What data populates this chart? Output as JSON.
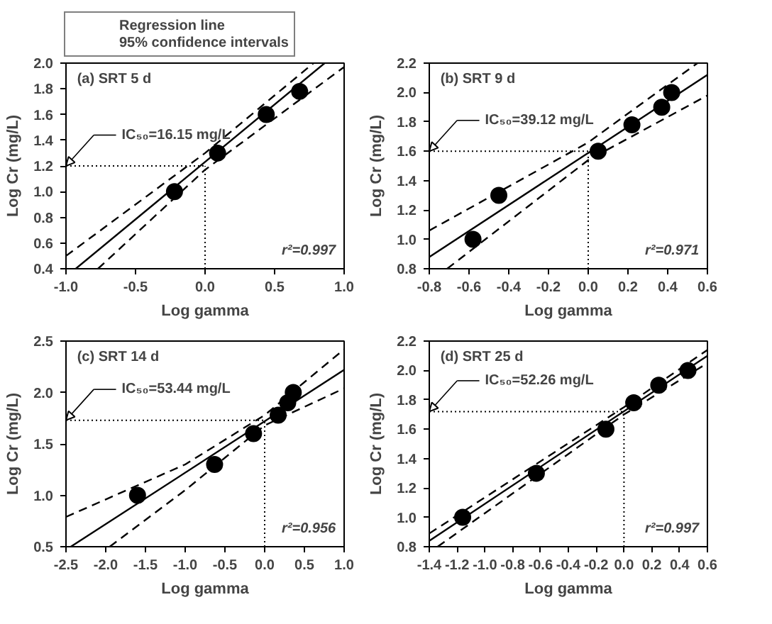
{
  "chart_data": [
    {
      "type": "scatter",
      "title": "(a) SRT 5 d",
      "xlabel": "Log gamma",
      "ylabel": "Log Cr (mg/L)",
      "xlim": [
        -1.0,
        1.0
      ],
      "ylim": [
        0.4,
        2.0
      ],
      "xticks": [
        {
          "value": -1.0,
          "label": "-1.0"
        },
        {
          "value": -0.5,
          "label": "-0.5"
        },
        {
          "value": 0,
          "label": "0.0"
        },
        {
          "value": 0.5,
          "label": "0.5"
        },
        {
          "value": 1.0,
          "label": "1.0"
        }
      ],
      "yticks": [
        {
          "value": 0.4,
          "label": "0.4"
        },
        {
          "value": 0.6,
          "label": "0.6"
        },
        {
          "value": 0.8,
          "label": "0.8"
        },
        {
          "value": 1.0,
          "label": "1.0"
        },
        {
          "value": 1.2,
          "label": "1.2"
        },
        {
          "value": 1.4,
          "label": "1.4"
        },
        {
          "value": 1.6,
          "label": "1.6"
        },
        {
          "value": 1.8,
          "label": "1.8"
        },
        {
          "value": 2.0,
          "label": "2.0"
        }
      ],
      "legend": "top left",
      "grid": false,
      "annotations": [
        "IC₅₀=16.15 mg/L",
        "r²=0.997"
      ],
      "ref_lines": [
        {
          "axis": "y",
          "value": 1.2,
          "line_style": "dotted"
        },
        {
          "axis": "x",
          "value": 0,
          "line_style": "dotted"
        }
      ],
      "series": [
        {
          "marker": "circle",
          "color": "#000000",
          "x": [
            -0.22,
            0.09,
            0.44,
            0.68
          ],
          "values": [
            1.0,
            1.3,
            1.6,
            1.78
          ]
        },
        {
          "type": "line",
          "name": "Regression line",
          "line_style": "solid",
          "color": "#000000",
          "x": [
            -0.93,
            0.86
          ],
          "values": [
            0.4,
            2.0
          ]
        },
        {
          "type": "line",
          "name": "95% confidence intervals",
          "line_style": "dashed",
          "color": "#000000",
          "x": [
            -1.0,
            0.0,
            0.78
          ],
          "values": [
            0.5,
            1.3,
            2.0
          ]
        },
        {
          "type": "line",
          "line_style": "dashed",
          "color": "#000000",
          "x": [
            -0.77,
            0.0,
            1.0
          ],
          "values": [
            0.4,
            1.17,
            1.97
          ]
        }
      ]
    },
    {
      "type": "scatter",
      "title": "(b) SRT 9 d",
      "xlabel": "Log gamma",
      "ylabel": "Log Cr (mg/L)",
      "xlim": [
        -0.8,
        0.6
      ],
      "ylim": [
        0.8,
        2.2
      ],
      "xticks": [
        {
          "value": -0.8,
          "label": "-0.8"
        },
        {
          "value": -0.6,
          "label": "-0.6"
        },
        {
          "value": -0.4,
          "label": "-0.4"
        },
        {
          "value": -0.2,
          "label": "-0.2"
        },
        {
          "value": 0,
          "label": "0.0"
        },
        {
          "value": 0.2,
          "label": "0.2"
        },
        {
          "value": 0.4,
          "label": "0.4"
        },
        {
          "value": 0.6,
          "label": "0.6"
        }
      ],
      "yticks": [
        {
          "value": 0.8,
          "label": "0.8"
        },
        {
          "value": 1.0,
          "label": "1.0"
        },
        {
          "value": 1.2,
          "label": "1.2"
        },
        {
          "value": 1.4,
          "label": "1.4"
        },
        {
          "value": 1.6,
          "label": "1.6"
        },
        {
          "value": 1.8,
          "label": "1.8"
        },
        {
          "value": 2.0,
          "label": "2.0"
        },
        {
          "value": 2.2,
          "label": "2.2"
        }
      ],
      "grid": false,
      "annotations": [
        "IC₅₀=39.12 mg/L",
        "r²=0.971"
      ],
      "ref_lines": [
        {
          "axis": "y",
          "value": 1.6,
          "line_style": "dotted"
        },
        {
          "axis": "x",
          "value": 0,
          "line_style": "dotted"
        }
      ],
      "series": [
        {
          "marker": "circle",
          "color": "#000000",
          "x": [
            -0.58,
            -0.45,
            0.05,
            0.22,
            0.37,
            0.42
          ],
          "values": [
            1.0,
            1.3,
            1.6,
            1.78,
            1.9,
            2.0
          ]
        },
        {
          "type": "line",
          "line_style": "solid",
          "color": "#000000",
          "x": [
            -0.8,
            0.6
          ],
          "values": [
            0.88,
            2.12
          ]
        },
        {
          "type": "line",
          "line_style": "dashed",
          "color": "#000000",
          "x": [
            -0.8,
            0.0,
            0.55
          ],
          "values": [
            1.06,
            1.66,
            2.2
          ]
        },
        {
          "type": "line",
          "line_style": "dashed",
          "color": "#000000",
          "x": [
            -0.71,
            0.0,
            0.6
          ],
          "values": [
            0.8,
            1.54,
            1.98
          ]
        }
      ]
    },
    {
      "type": "scatter",
      "title": "(c) SRT 14 d",
      "xlabel": "Log gamma",
      "ylabel": "Log Cr (mg/L)",
      "xlim": [
        -2.5,
        1.0
      ],
      "ylim": [
        0.5,
        2.5
      ],
      "xticks": [
        {
          "value": -2.5,
          "label": "-2.5"
        },
        {
          "value": -2.0,
          "label": "-2.0"
        },
        {
          "value": -1.5,
          "label": "-1.5"
        },
        {
          "value": -1.0,
          "label": "-1.0"
        },
        {
          "value": -0.5,
          "label": "-0.5"
        },
        {
          "value": 0,
          "label": "0.0"
        },
        {
          "value": 0.5,
          "label": "0.5"
        },
        {
          "value": 1.0,
          "label": "1.0"
        }
      ],
      "yticks": [
        {
          "value": 0.5,
          "label": "0.5"
        },
        {
          "value": 1.0,
          "label": "1.0"
        },
        {
          "value": 1.5,
          "label": "1.5"
        },
        {
          "value": 2.0,
          "label": "2.0"
        },
        {
          "value": 2.5,
          "label": "2.5"
        }
      ],
      "grid": false,
      "annotations": [
        "IC₅₀=53.44 mg/L",
        "r²=0.956"
      ],
      "ref_lines": [
        {
          "axis": "y",
          "value": 1.73,
          "line_style": "dotted"
        },
        {
          "axis": "x",
          "value": 0,
          "line_style": "dotted"
        }
      ],
      "series": [
        {
          "marker": "circle",
          "color": "#000000",
          "x": [
            -1.6,
            -0.63,
            -0.14,
            0.17,
            0.29,
            0.36
          ],
          "values": [
            1.0,
            1.3,
            1.6,
            1.78,
            1.9,
            2.0
          ]
        },
        {
          "type": "line",
          "line_style": "solid",
          "color": "#000000",
          "x": [
            -2.44,
            1.0
          ],
          "values": [
            0.5,
            2.22
          ]
        },
        {
          "type": "line",
          "line_style": "dashed",
          "color": "#000000",
          "x": [
            -2.5,
            -1.0,
            0.0,
            1.0
          ],
          "values": [
            0.79,
            1.3,
            1.78,
            2.42
          ]
        },
        {
          "type": "line",
          "line_style": "dashed",
          "color": "#000000",
          "x": [
            -1.95,
            -1.0,
            0.0,
            1.0
          ],
          "values": [
            0.5,
            1.05,
            1.68,
            2.04
          ]
        }
      ]
    },
    {
      "type": "scatter",
      "title": "(d) SRT 25 d",
      "xlabel": "Log gamma",
      "ylabel": "Log Cr (mg/L)",
      "xlim": [
        -1.4,
        0.6
      ],
      "ylim": [
        0.8,
        2.2
      ],
      "xticks": [
        {
          "value": -1.4,
          "label": "-1.4"
        },
        {
          "value": -1.2,
          "label": "-1.2"
        },
        {
          "value": -1.0,
          "label": "-1.0"
        },
        {
          "value": -0.8,
          "label": "-0.8"
        },
        {
          "value": -0.6,
          "label": "-0.6"
        },
        {
          "value": -0.4,
          "label": "-0.4"
        },
        {
          "value": -0.2,
          "label": "-0.2"
        },
        {
          "value": 0,
          "label": "0.0"
        },
        {
          "value": 0.2,
          "label": "0.2"
        },
        {
          "value": 0.4,
          "label": "0.4"
        },
        {
          "value": 0.6,
          "label": "0.6"
        }
      ],
      "yticks": [
        {
          "value": 0.8,
          "label": "0.8"
        },
        {
          "value": 1.0,
          "label": "1.0"
        },
        {
          "value": 1.2,
          "label": "1.2"
        },
        {
          "value": 1.4,
          "label": "1.4"
        },
        {
          "value": 1.6,
          "label": "1.6"
        },
        {
          "value": 1.8,
          "label": "1.8"
        },
        {
          "value": 2.0,
          "label": "2.0"
        },
        {
          "value": 2.2,
          "label": "2.2"
        }
      ],
      "grid": false,
      "annotations": [
        "IC₅₀=52.26 mg/L",
        "r²=0.997"
      ],
      "ref_lines": [
        {
          "axis": "y",
          "value": 1.72,
          "line_style": "dotted"
        },
        {
          "axis": "x",
          "value": 0,
          "line_style": "dotted"
        }
      ],
      "series": [
        {
          "marker": "circle",
          "color": "#000000",
          "x": [
            -1.16,
            -0.63,
            -0.13,
            0.07,
            0.25,
            0.46
          ],
          "values": [
            1.0,
            1.3,
            1.6,
            1.78,
            1.9,
            2.0
          ]
        },
        {
          "type": "line",
          "line_style": "solid",
          "color": "#000000",
          "x": [
            -1.4,
            0.6
          ],
          "values": [
            0.84,
            2.1
          ]
        },
        {
          "type": "line",
          "line_style": "dashed",
          "color": "#000000",
          "x": [
            -1.4,
            0.0,
            0.6
          ],
          "values": [
            0.89,
            1.75,
            2.14
          ]
        },
        {
          "type": "line",
          "line_style": "dashed",
          "color": "#000000",
          "x": [
            -1.34,
            0.0,
            0.6
          ],
          "values": [
            0.8,
            1.7,
            2.05
          ]
        }
      ]
    }
  ]
}
